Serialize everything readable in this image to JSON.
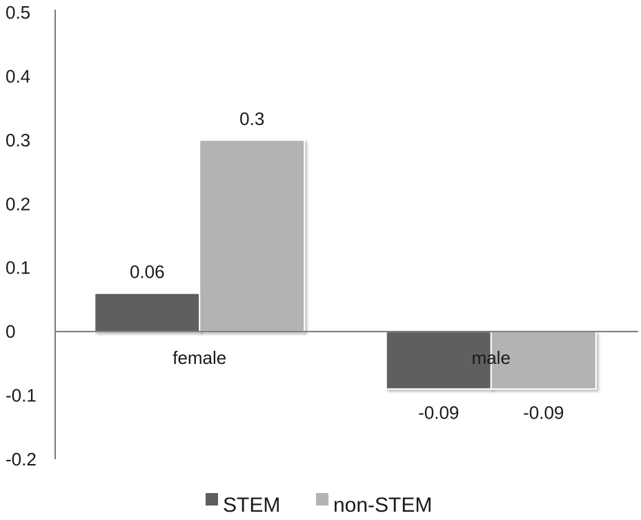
{
  "chart_data": {
    "type": "bar",
    "title": "",
    "xlabel": "",
    "ylabel": "",
    "categories": [
      "female",
      "male"
    ],
    "series": [
      {
        "name": "STEM",
        "values": [
          0.06,
          -0.09
        ],
        "labels": [
          "0.06",
          "-0.09"
        ],
        "color": "#5f5f5f"
      },
      {
        "name": "non-STEM",
        "values": [
          0.3,
          -0.09
        ],
        "labels": [
          "0.3",
          "-0.09"
        ],
        "color": "#b3b3b3"
      }
    ],
    "ylim": [
      -0.2,
      0.5
    ],
    "yticks": [
      0.5,
      0.4,
      0.3,
      0.2,
      0.1,
      0,
      -0.1,
      -0.2
    ],
    "ytick_labels": [
      "0.5",
      "0.4",
      "0.3",
      "0.2",
      "0.1",
      "0",
      "-0.1",
      "-0.2"
    ],
    "grid": false,
    "legend_position": "bottom"
  }
}
